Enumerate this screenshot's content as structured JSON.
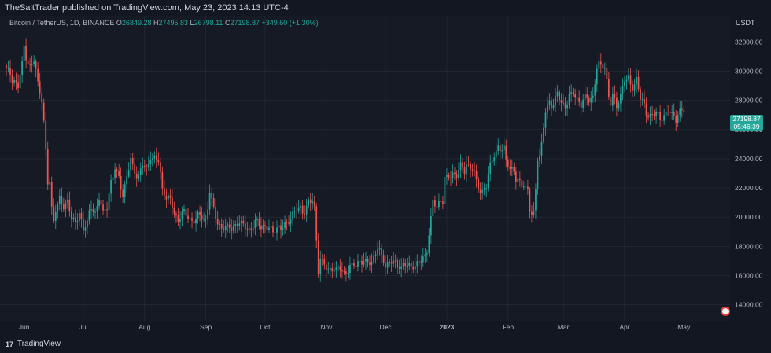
{
  "header": {
    "text": "TheSaltTrader published on TradingView.com, May 23, 2023 14:13 UTC-4"
  },
  "legend": {
    "symbol": "Bitcoin / TetherUS, 1D, BINANCE",
    "o_label": "O",
    "o": "26849.28",
    "h_label": "H",
    "h": "27495.83",
    "l_label": "L",
    "l": "26798.11",
    "c_label": "C",
    "c": "27198.87",
    "change": "+349.60 (+1.30%)"
  },
  "axis_currency": "USDT",
  "price_badge": {
    "price": "27198.87",
    "countdown": "05:46:39"
  },
  "footer": {
    "brand": "TradingView",
    "logo_text": "17"
  },
  "colors": {
    "up": "#26a69a",
    "down": "#ef5350",
    "background": "#161a25",
    "grid": "#2a2e39"
  },
  "chart_data": {
    "type": "candlestick",
    "title": "Bitcoin / TetherUS, 1D, BINANCE",
    "ylabel": "USDT",
    "ylim": [
      12900,
      33800
    ],
    "y_ticks": [
      "14000.00",
      "16000.00",
      "18000.00",
      "20000.00",
      "22000.00",
      "24000.00",
      "26000.00",
      "28000.00",
      "30000.00",
      "32000.00"
    ],
    "x_ticks": [
      "Jun",
      "Jul",
      "Aug",
      "Sep",
      "Oct",
      "Nov",
      "Dec",
      "2023",
      "Feb",
      "Mar",
      "Apr",
      "May"
    ],
    "x_tick_days": [
      9,
      39,
      70,
      101,
      131,
      162,
      192,
      223,
      254,
      282,
      313,
      343
    ],
    "total_days": 364,
    "last_price": 27198.87,
    "close_anchors": [
      [
        0,
        30200
      ],
      [
        2,
        29800
      ],
      [
        4,
        29400
      ],
      [
        6,
        28900
      ],
      [
        8,
        30500
      ],
      [
        9,
        31700
      ],
      [
        10,
        31000
      ],
      [
        12,
        30200
      ],
      [
        14,
        30700
      ],
      [
        16,
        29200
      ],
      [
        18,
        28200
      ],
      [
        19,
        26500
      ],
      [
        20,
        24500
      ],
      [
        21,
        22300
      ],
      [
        22,
        22400
      ],
      [
        23,
        20600
      ],
      [
        24,
        19900
      ],
      [
        25,
        20600
      ],
      [
        27,
        21100
      ],
      [
        29,
        20600
      ],
      [
        31,
        21200
      ],
      [
        33,
        20000
      ],
      [
        35,
        19500
      ],
      [
        37,
        20300
      ],
      [
        39,
        19300
      ],
      [
        41,
        19600
      ],
      [
        43,
        20600
      ],
      [
        45,
        20300
      ],
      [
        47,
        21300
      ],
      [
        49,
        20200
      ],
      [
        51,
        20800
      ],
      [
        53,
        22500
      ],
      [
        55,
        23300
      ],
      [
        57,
        22600
      ],
      [
        59,
        21500
      ],
      [
        61,
        22800
      ],
      [
        63,
        23800
      ],
      [
        65,
        23100
      ],
      [
        67,
        22900
      ],
      [
        69,
        23600
      ],
      [
        71,
        23200
      ],
      [
        73,
        24200
      ],
      [
        75,
        24000
      ],
      [
        77,
        23800
      ],
      [
        79,
        21900
      ],
      [
        81,
        21500
      ],
      [
        83,
        21200
      ],
      [
        85,
        20200
      ],
      [
        87,
        19900
      ],
      [
        89,
        20300
      ],
      [
        91,
        20100
      ],
      [
        93,
        19800
      ],
      [
        95,
        19800
      ],
      [
        97,
        20100
      ],
      [
        99,
        20000
      ],
      [
        101,
        19800
      ],
      [
        103,
        21800
      ],
      [
        105,
        20400
      ],
      [
        107,
        19600
      ],
      [
        109,
        19300
      ],
      [
        111,
        19200
      ],
      [
        113,
        19300
      ],
      [
        115,
        19400
      ],
      [
        117,
        19600
      ],
      [
        119,
        19500
      ],
      [
        121,
        19400
      ],
      [
        123,
        19100
      ],
      [
        125,
        19300
      ],
      [
        127,
        19700
      ],
      [
        129,
        19500
      ],
      [
        131,
        19300
      ],
      [
        133,
        19200
      ],
      [
        135,
        19100
      ],
      [
        137,
        19300
      ],
      [
        139,
        19100
      ],
      [
        141,
        19400
      ],
      [
        143,
        19800
      ],
      [
        145,
        20200
      ],
      [
        147,
        20500
      ],
      [
        149,
        20700
      ],
      [
        151,
        20400
      ],
      [
        153,
        20900
      ],
      [
        155,
        21100
      ],
      [
        156,
        20600
      ],
      [
        157,
        18500
      ],
      [
        158,
        16300
      ],
      [
        159,
        17100
      ],
      [
        161,
        16700
      ],
      [
        163,
        16400
      ],
      [
        165,
        16600
      ],
      [
        167,
        16300
      ],
      [
        169,
        16500
      ],
      [
        171,
        16200
      ],
      [
        173,
        16300
      ],
      [
        175,
        16600
      ],
      [
        177,
        16900
      ],
      [
        179,
        17000
      ],
      [
        181,
        16900
      ],
      [
        183,
        16900
      ],
      [
        185,
        17000
      ],
      [
        187,
        17500
      ],
      [
        188,
        17800
      ],
      [
        190,
        17300
      ],
      [
        192,
        16800
      ],
      [
        194,
        16900
      ],
      [
        196,
        16900
      ],
      [
        198,
        16800
      ],
      [
        200,
        16600
      ],
      [
        202,
        16700
      ],
      [
        204,
        16600
      ],
      [
        206,
        16700
      ],
      [
        208,
        16800
      ],
      [
        210,
        17000
      ],
      [
        212,
        17400
      ],
      [
        213,
        17900
      ],
      [
        214,
        18900
      ],
      [
        215,
        19900
      ],
      [
        216,
        20900
      ],
      [
        218,
        20700
      ],
      [
        220,
        21200
      ],
      [
        221,
        21100
      ],
      [
        222,
        22600
      ],
      [
        224,
        22700
      ],
      [
        226,
        23000
      ],
      [
        228,
        23000
      ],
      [
        230,
        23500
      ],
      [
        232,
        23100
      ],
      [
        233,
        23700
      ],
      [
        235,
        23400
      ],
      [
        236,
        23300
      ],
      [
        237,
        22800
      ],
      [
        239,
        22000
      ],
      [
        241,
        21800
      ],
      [
        243,
        22200
      ],
      [
        245,
        23500
      ],
      [
        247,
        24300
      ],
      [
        249,
        24800
      ],
      [
        250,
        24600
      ],
      [
        252,
        24500
      ],
      [
        253,
        23900
      ],
      [
        255,
        23500
      ],
      [
        256,
        23300
      ],
      [
        257,
        23100
      ],
      [
        258,
        22500
      ],
      [
        260,
        22400
      ],
      [
        262,
        22300
      ],
      [
        264,
        21700
      ],
      [
        265,
        20400
      ],
      [
        266,
        20100
      ],
      [
        267,
        20200
      ],
      [
        268,
        22000
      ],
      [
        269,
        24100
      ],
      [
        270,
        24200
      ],
      [
        271,
        25000
      ],
      [
        273,
        27200
      ],
      [
        275,
        28000
      ],
      [
        277,
        27800
      ],
      [
        279,
        28400
      ],
      [
        281,
        27800
      ],
      [
        283,
        27600
      ],
      [
        285,
        28200
      ],
      [
        287,
        28500
      ],
      [
        289,
        28100
      ],
      [
        291,
        27800
      ],
      [
        293,
        28200
      ],
      [
        295,
        28000
      ],
      [
        297,
        28300
      ],
      [
        299,
        30200
      ],
      [
        301,
        30300
      ],
      [
        303,
        30400
      ],
      [
        304,
        29400
      ],
      [
        305,
        28300
      ],
      [
        306,
        27800
      ],
      [
        307,
        28300
      ],
      [
        309,
        27600
      ],
      [
        311,
        28400
      ],
      [
        313,
        29400
      ],
      [
        315,
        29300
      ],
      [
        317,
        28900
      ],
      [
        319,
        29500
      ],
      [
        321,
        28100
      ],
      [
        323,
        27700
      ],
      [
        325,
        27000
      ],
      [
        327,
        26900
      ],
      [
        329,
        27100
      ],
      [
        331,
        26800
      ],
      [
        333,
        26900
      ],
      [
        335,
        27200
      ],
      [
        337,
        27100
      ],
      [
        339,
        26900
      ],
      [
        341,
        27200
      ],
      [
        343,
        27198.87
      ]
    ],
    "grid": true,
    "legend_position": "top-left"
  }
}
